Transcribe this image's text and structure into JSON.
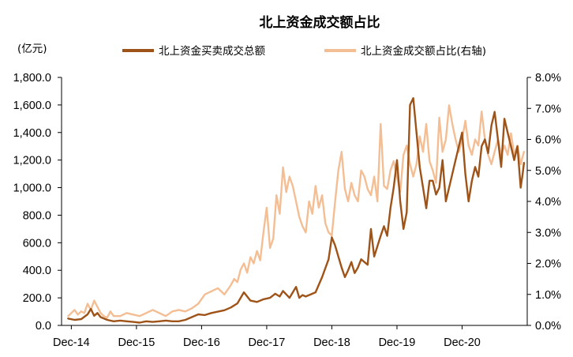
{
  "chart_data": {
    "type": "line",
    "title": "北上资金成交额占比",
    "ylabel_left": "(亿元)",
    "ylabel_right": "",
    "xlabel": "",
    "categories": [
      "Dec-14",
      "Dec-15",
      "Dec-16",
      "Dec-17",
      "Dec-18",
      "Dec-19",
      "Dec-20"
    ],
    "y_left": {
      "range": [
        0,
        1800
      ],
      "ticks": [
        "0.0",
        "200.0",
        "400.0",
        "600.0",
        "800.0",
        "1,000.0",
        "1,200.0",
        "1,400.0",
        "1,600.0",
        "1,800.0"
      ]
    },
    "y_right": {
      "range": [
        0,
        8
      ],
      "ticks": [
        "0.0%",
        "1.0%",
        "2.0%",
        "3.0%",
        "4.0%",
        "5.0%",
        "6.0%",
        "7.0%",
        "8.0%"
      ]
    },
    "grid": false,
    "legend_position": "top",
    "series": [
      {
        "name": "北上资金买卖成交总额",
        "axis": "left",
        "color": "#9E5318",
        "x": [
          2014.9,
          2015.0,
          2015.1,
          2015.2,
          2015.25,
          2015.3,
          2015.35,
          2015.4,
          2015.5,
          2015.6,
          2015.7,
          2015.8,
          2015.9,
          2016.0,
          2016.1,
          2016.2,
          2016.3,
          2016.4,
          2016.5,
          2016.6,
          2016.7,
          2016.8,
          2016.9,
          2017.0,
          2017.1,
          2017.2,
          2017.3,
          2017.4,
          2017.5,
          2017.6,
          2017.7,
          2017.8,
          2017.9,
          2018.0,
          2018.08,
          2018.15,
          2018.2,
          2018.3,
          2018.4,
          2018.45,
          2018.5,
          2018.55,
          2018.6,
          2018.7,
          2018.8,
          2018.9,
          2018.95,
          2019.0,
          2019.05,
          2019.1,
          2019.15,
          2019.2,
          2019.25,
          2019.3,
          2019.35,
          2019.4,
          2019.5,
          2019.55,
          2019.6,
          2019.7,
          2019.75,
          2019.8,
          2019.85,
          2019.9,
          2019.95,
          2020.0,
          2020.05,
          2020.1,
          2020.15,
          2020.2,
          2020.25,
          2020.3,
          2020.35,
          2020.4,
          2020.45,
          2020.5,
          2020.55,
          2020.6,
          2020.65,
          2020.7,
          2020.75,
          2020.8,
          2020.85,
          2020.9,
          2020.95,
          2021.0,
          2021.05,
          2021.1,
          2021.15,
          2021.2,
          2021.25,
          2021.3,
          2021.35,
          2021.4,
          2021.45,
          2021.5,
          2021.55,
          2021.6,
          2021.65,
          2021.7,
          2021.75,
          2021.8,
          2021.85,
          2021.88,
          2021.9
        ],
        "values": [
          50,
          40,
          45,
          80,
          120,
          70,
          90,
          60,
          40,
          30,
          35,
          30,
          25,
          20,
          30,
          25,
          30,
          35,
          30,
          30,
          40,
          60,
          80,
          75,
          90,
          100,
          110,
          130,
          160,
          240,
          180,
          170,
          190,
          200,
          230,
          210,
          250,
          200,
          280,
          200,
          220,
          210,
          220,
          240,
          350,
          480,
          640,
          580,
          500,
          420,
          350,
          400,
          460,
          380,
          420,
          480,
          440,
          700,
          500,
          650,
          720,
          650,
          850,
          1000,
          1200,
          900,
          700,
          820,
          1600,
          1650,
          1400,
          1150,
          1000,
          850,
          1050,
          1050,
          950,
          1000,
          1200,
          900,
          1000,
          1100,
          1200,
          1300,
          1400,
          1100,
          900,
          1050,
          1150,
          1080,
          1300,
          1350,
          1250,
          1450,
          1550,
          1350,
          1150,
          1500,
          1400,
          1300,
          1200,
          1300,
          1000,
          1100,
          1180
        ]
      },
      {
        "name": "北上资金成交额占比(右轴)",
        "axis": "right",
        "color": "#F4BE94",
        "x": [
          2014.9,
          2015.0,
          2015.05,
          2015.1,
          2015.15,
          2015.2,
          2015.25,
          2015.3,
          2015.35,
          2015.4,
          2015.45,
          2015.5,
          2015.55,
          2015.6,
          2015.7,
          2015.8,
          2015.9,
          2016.0,
          2016.1,
          2016.2,
          2016.3,
          2016.4,
          2016.5,
          2016.6,
          2016.7,
          2016.8,
          2016.9,
          2017.0,
          2017.1,
          2017.2,
          2017.3,
          2017.4,
          2017.45,
          2017.5,
          2017.55,
          2017.6,
          2017.65,
          2017.7,
          2017.75,
          2017.8,
          2017.85,
          2017.9,
          2017.95,
          2018.0,
          2018.05,
          2018.1,
          2018.15,
          2018.2,
          2018.25,
          2018.3,
          2018.35,
          2018.4,
          2018.45,
          2018.5,
          2018.55,
          2018.6,
          2018.65,
          2018.7,
          2018.75,
          2018.8,
          2018.85,
          2018.9,
          2018.95,
          2019.0,
          2019.05,
          2019.1,
          2019.15,
          2019.2,
          2019.25,
          2019.3,
          2019.35,
          2019.4,
          2019.45,
          2019.5,
          2019.55,
          2019.6,
          2019.65,
          2019.7,
          2019.75,
          2019.8,
          2019.85,
          2019.9,
          2019.95,
          2020.0,
          2020.05,
          2020.1,
          2020.15,
          2020.2,
          2020.25,
          2020.3,
          2020.35,
          2020.4,
          2020.45,
          2020.5,
          2020.55,
          2020.6,
          2020.65,
          2020.7,
          2020.75,
          2020.8,
          2020.85,
          2020.9,
          2020.95,
          2021.0,
          2021.05,
          2021.1,
          2021.15,
          2021.2,
          2021.25,
          2021.3,
          2021.35,
          2021.4,
          2021.45,
          2021.5,
          2021.55,
          2021.6,
          2021.65,
          2021.7,
          2021.75,
          2021.8,
          2021.85,
          2021.9
        ],
        "values": [
          0.3,
          0.5,
          0.35,
          0.45,
          0.4,
          0.7,
          0.5,
          0.8,
          0.6,
          0.4,
          0.3,
          0.25,
          0.45,
          0.3,
          0.3,
          0.4,
          0.35,
          0.3,
          0.4,
          0.5,
          0.4,
          0.3,
          0.45,
          0.5,
          0.45,
          0.55,
          0.7,
          1.0,
          1.1,
          1.2,
          1.0,
          1.3,
          1.5,
          1.4,
          1.8,
          2.0,
          1.7,
          2.2,
          2.0,
          2.4,
          2.1,
          3.0,
          3.8,
          2.5,
          2.8,
          4.2,
          3.6,
          5.1,
          4.3,
          4.8,
          4.5,
          4.0,
          3.5,
          3.2,
          3.0,
          4.0,
          3.6,
          4.5,
          3.8,
          4.2,
          3.3,
          3.0,
          2.9,
          4.0,
          5.0,
          5.6,
          4.4,
          4.0,
          4.6,
          4.2,
          4.0,
          5.0,
          4.8,
          4.4,
          4.2,
          4.8,
          4.0,
          6.5,
          4.5,
          4.4,
          5.0,
          5.3,
          4.8,
          4.3,
          5.5,
          5.8,
          5.2,
          4.8,
          5.2,
          6.1,
          5.6,
          6.5,
          5.3,
          5.0,
          4.6,
          6.7,
          5.6,
          6.0,
          7.1,
          6.5,
          6.0,
          5.6,
          6.0,
          6.6,
          5.8,
          5.5,
          6.0,
          5.8,
          6.9,
          6.0,
          5.5,
          5.2,
          5.6,
          6.0,
          5.5,
          5.8,
          5.5,
          6.2,
          5.5,
          5.8,
          5.2,
          5.6
        ]
      }
    ]
  }
}
